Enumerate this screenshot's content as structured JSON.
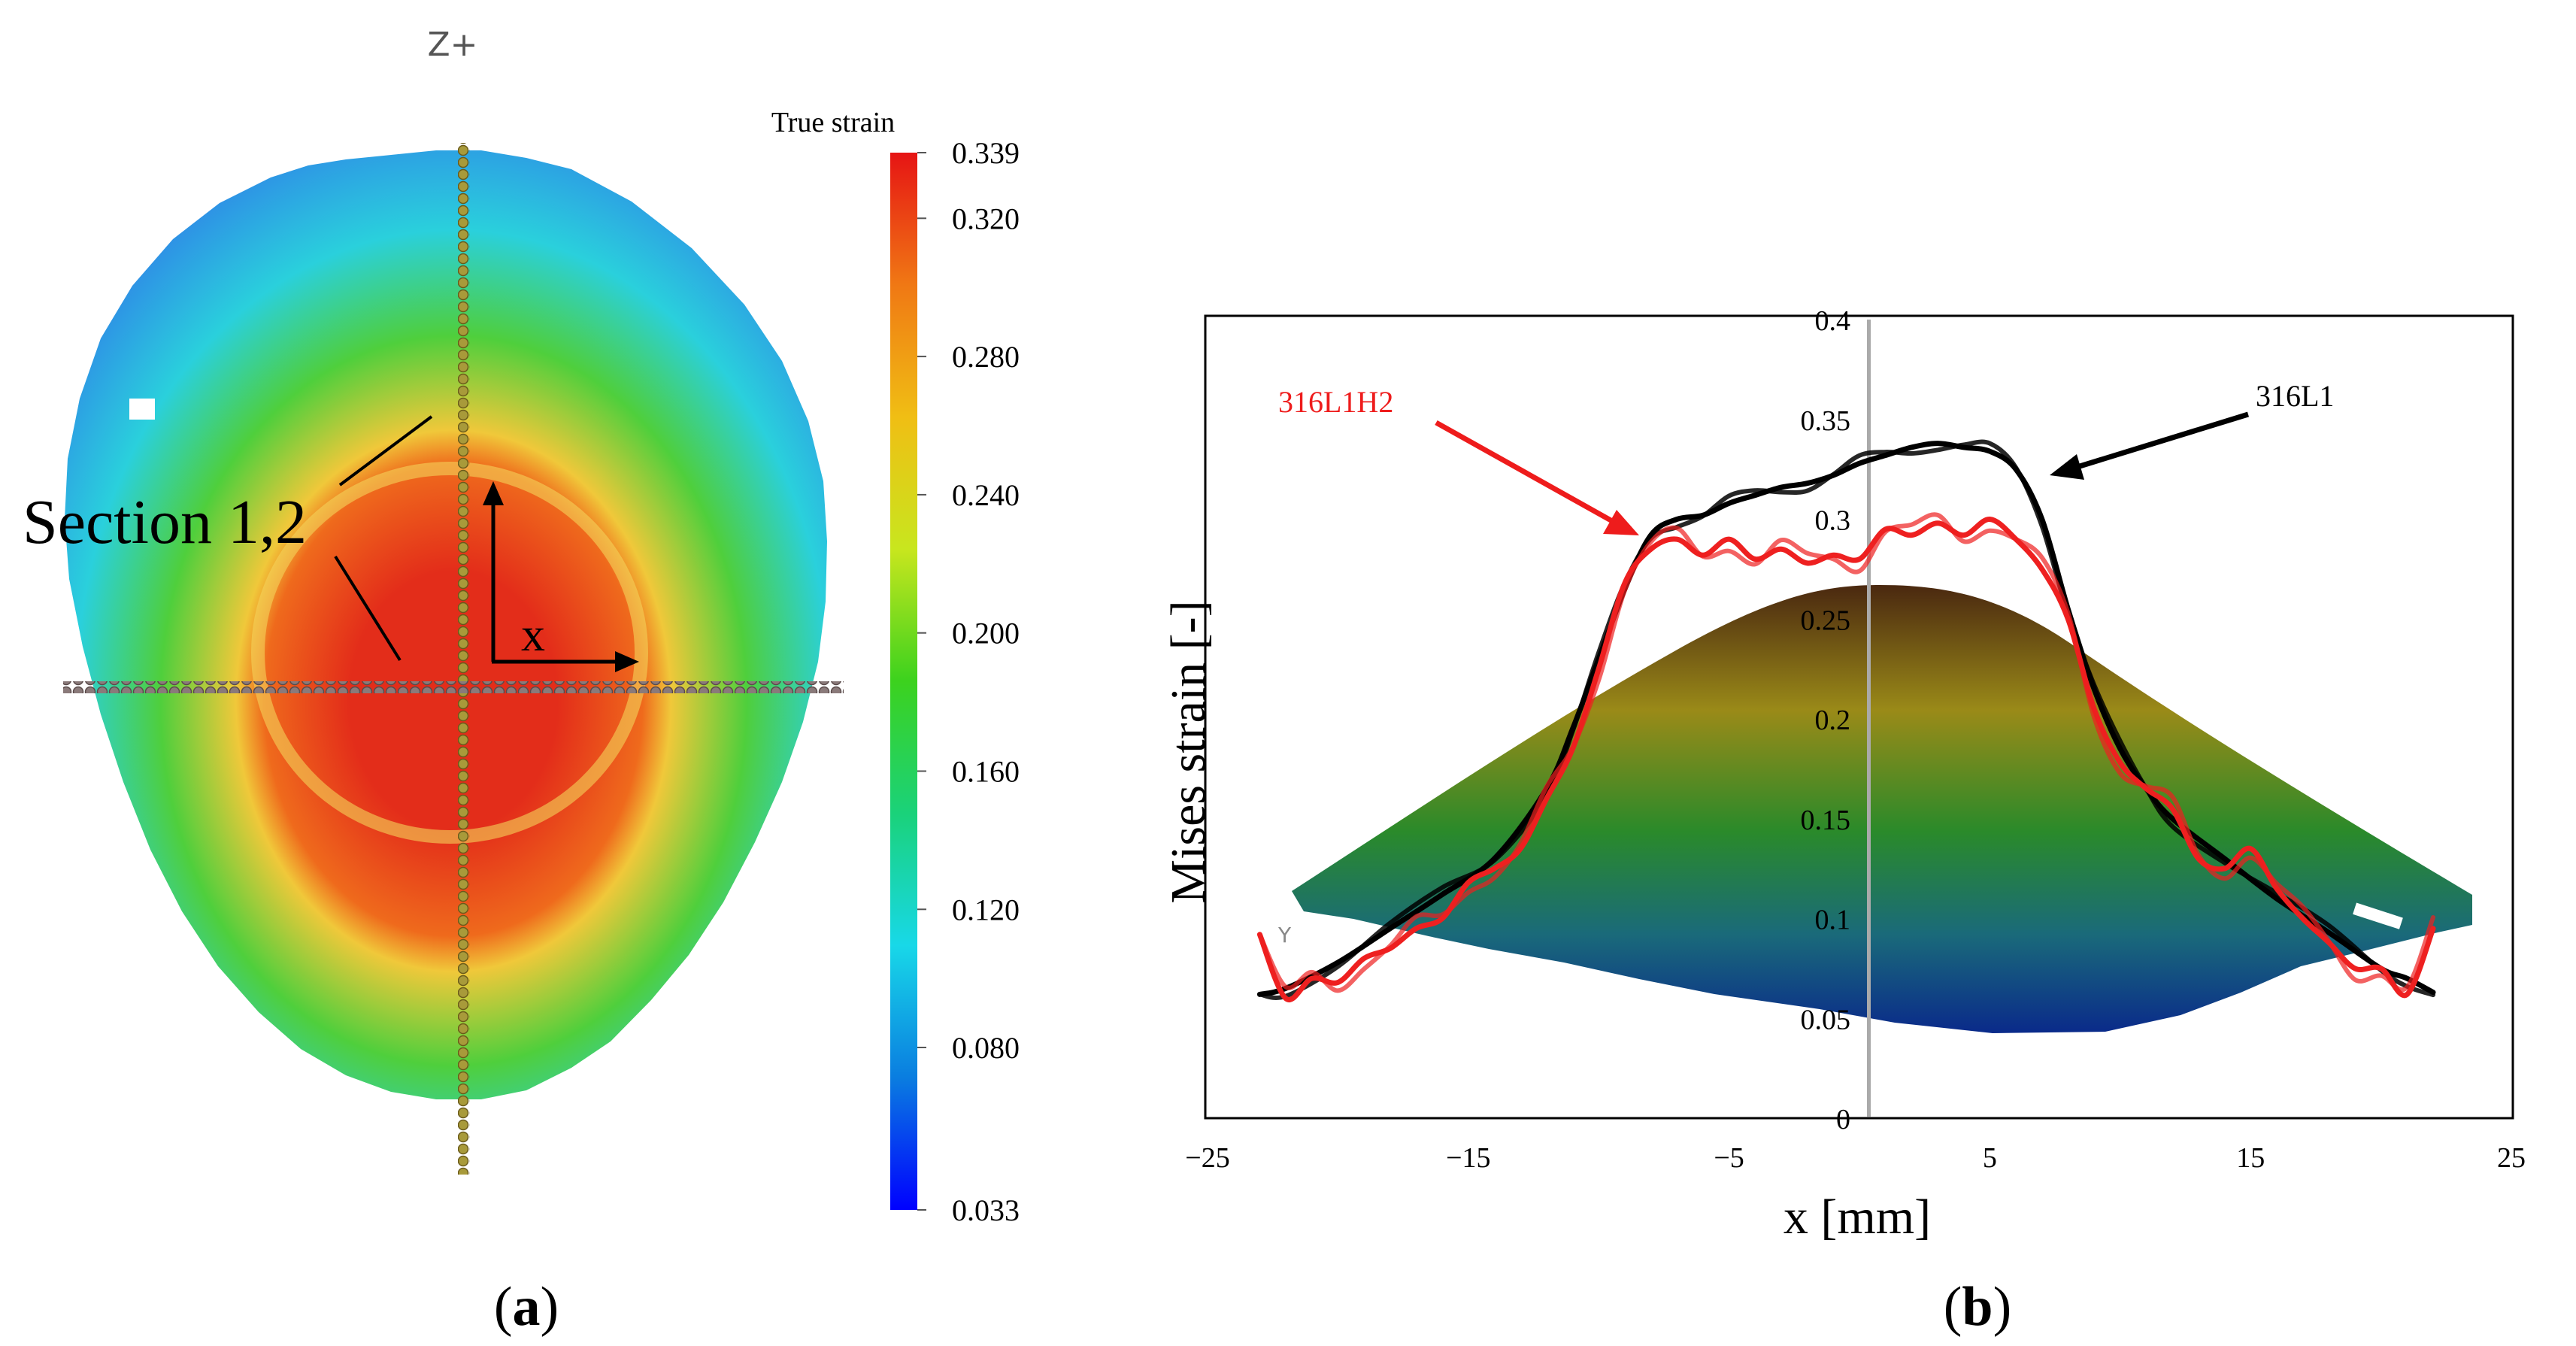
{
  "panel_a": {
    "view_label": "Z+",
    "section_label": "Section 1,2",
    "axis_label": "x",
    "caption_open": "(",
    "caption_letter": "a",
    "caption_close": ")",
    "colorbar": {
      "title": "True strain",
      "ticks": [
        "0.339",
        "0.320",
        "0.280",
        "0.240",
        "0.200",
        "0.160",
        "0.120",
        "0.080",
        "0.033"
      ],
      "tick_values": [
        0.339,
        0.32,
        0.28,
        0.24,
        0.2,
        0.16,
        0.12,
        0.08,
        0.033
      ],
      "vmin": 0.033,
      "vmax": 0.339,
      "colors": [
        "#0000ff",
        "#0a7de0",
        "#18d8e8",
        "#1ad27a",
        "#3cd21e",
        "#c8e61e",
        "#f0be14",
        "#f07814",
        "#e61414"
      ]
    },
    "contour_colors": {
      "outer": "#2e8de6",
      "cyan": "#2ad0dc",
      "green": "#4fcf3c",
      "yellow": "#f0c83a",
      "orange": "#ef6a1c",
      "red": "#e32d1a"
    }
  },
  "chart_data": {
    "type": "line",
    "xlabel": "x [mm]",
    "ylabel": "Mises strain [-]",
    "xlim": [
      -25,
      25
    ],
    "ylim": [
      0,
      0.4
    ],
    "xticks": [
      -25,
      -15,
      -5,
      5,
      15,
      25
    ],
    "yticks": [
      0,
      0.05,
      0.1,
      0.15,
      0.2,
      0.25,
      0.3,
      0.35,
      0.4
    ],
    "xtick_labels": [
      "−25",
      "−15",
      "−5",
      "5",
      "15",
      "25"
    ],
    "ytick_labels": [
      "0",
      "0.05",
      "0.1",
      "0.15",
      "0.2",
      "0.25",
      "0.3",
      "0.35",
      "0.4"
    ],
    "grid": false,
    "annotations": [
      "316L1",
      "316L1H2"
    ],
    "caption_open": "(",
    "caption_letter": "b",
    "caption_close": ")",
    "series": [
      {
        "name": "316L1",
        "color": "#000000",
        "x": [
          -23,
          -22,
          -20,
          -18,
          -16,
          -14,
          -12,
          -11,
          -10,
          -9,
          -8,
          -7,
          -6,
          -5,
          -4,
          -3,
          -2,
          -1,
          0,
          1,
          2,
          3,
          4,
          5,
          6,
          7,
          8,
          9,
          10,
          11,
          12,
          14,
          16,
          18,
          20,
          21,
          22
        ],
        "y": [
          0.062,
          0.065,
          0.078,
          0.095,
          0.112,
          0.13,
          0.165,
          0.195,
          0.23,
          0.265,
          0.292,
          0.3,
          0.302,
          0.308,
          0.312,
          0.316,
          0.318,
          0.322,
          0.328,
          0.332,
          0.336,
          0.338,
          0.336,
          0.334,
          0.325,
          0.3,
          0.255,
          0.215,
          0.185,
          0.165,
          0.15,
          0.13,
          0.11,
          0.093,
          0.075,
          0.07,
          0.063
        ]
      },
      {
        "name": "316L1H2",
        "color": "#ee2020",
        "x": [
          -23,
          -22,
          -21,
          -20,
          -19,
          -18,
          -17,
          -16,
          -15,
          -14,
          -13,
          -12,
          -11,
          -10,
          -9,
          -8,
          -7,
          -6,
          -5,
          -4,
          -3,
          -2,
          -1,
          0,
          1,
          2,
          3,
          4,
          5,
          6,
          7,
          8,
          9,
          10,
          11,
          12,
          13,
          14,
          15,
          16,
          17,
          18,
          19,
          20,
          21,
          22
        ],
        "y": [
          0.092,
          0.06,
          0.07,
          0.068,
          0.08,
          0.085,
          0.095,
          0.1,
          0.118,
          0.125,
          0.135,
          0.16,
          0.185,
          0.225,
          0.268,
          0.285,
          0.29,
          0.282,
          0.29,
          0.28,
          0.285,
          0.278,
          0.282,
          0.28,
          0.295,
          0.292,
          0.298,
          0.292,
          0.3,
          0.29,
          0.275,
          0.25,
          0.205,
          0.178,
          0.165,
          0.155,
          0.13,
          0.125,
          0.135,
          0.115,
          0.1,
          0.088,
          0.075,
          0.075,
          0.062,
          0.095
        ]
      }
    ]
  }
}
